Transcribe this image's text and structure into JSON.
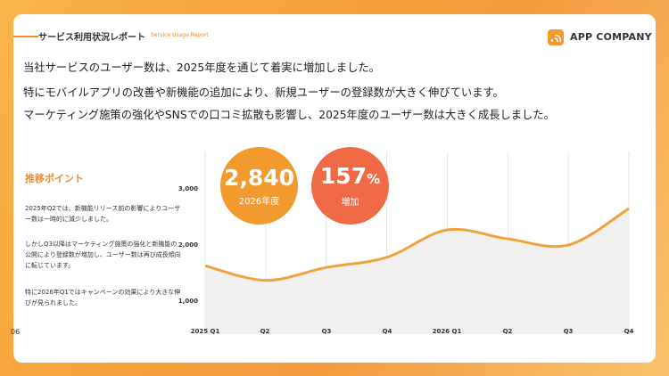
{
  "header": {
    "title": "サービス利用状況レポート",
    "subtitle": "Service Usage Report",
    "company": "APP COMPANY"
  },
  "lead": [
    "当社サービスのユーザー数は、2025年度を通じて着実に増加しました。",
    "特にモバイルアプリの改善や新機能の追加により、新規ユーザーの登録数が大きく伸びています。",
    "マーケティング施策の強化やSNSでの口コミ拡散も影響し、2025年度のユーザー数は大きく成長しました。"
  ],
  "points": {
    "title": "推移ポイント",
    "items": [
      "2025年Q2では、新機能リリース前の影響によりユーザー数は一時的に減少しました。",
      "しかしQ3以降はマーケティング施策の強化と新機能の公開により登録数が増加し、ユーザー数は再び成長傾向に転じています。",
      "特に2026年Q1ではキャンペーンの効果により大きな伸びが見られました。"
    ]
  },
  "stats": [
    {
      "value": "2,840",
      "unit": "",
      "label": "2026年度",
      "color": "#f39a2e"
    },
    {
      "value": "157",
      "unit": "%",
      "label": "増加",
      "color": "#ef6a45"
    }
  ],
  "page_number": "06",
  "colors": {
    "accent": "#f08c2a",
    "line": "#f0a23c",
    "area": "#f2f1f0",
    "grid": "#e6e6e6"
  },
  "chart_data": {
    "type": "area",
    "categories": [
      "2025 Q1",
      "Q2",
      "Q3",
      "Q4",
      "2026 Q1",
      "Q2",
      "Q3",
      "Q4"
    ],
    "values": [
      1630,
      1370,
      1600,
      1780,
      2270,
      2110,
      2000,
      2650
    ],
    "yticks": [
      "1,000",
      "2,000",
      "3,000"
    ],
    "ylim": [
      500,
      3300
    ],
    "grid": true,
    "legend": "none"
  }
}
